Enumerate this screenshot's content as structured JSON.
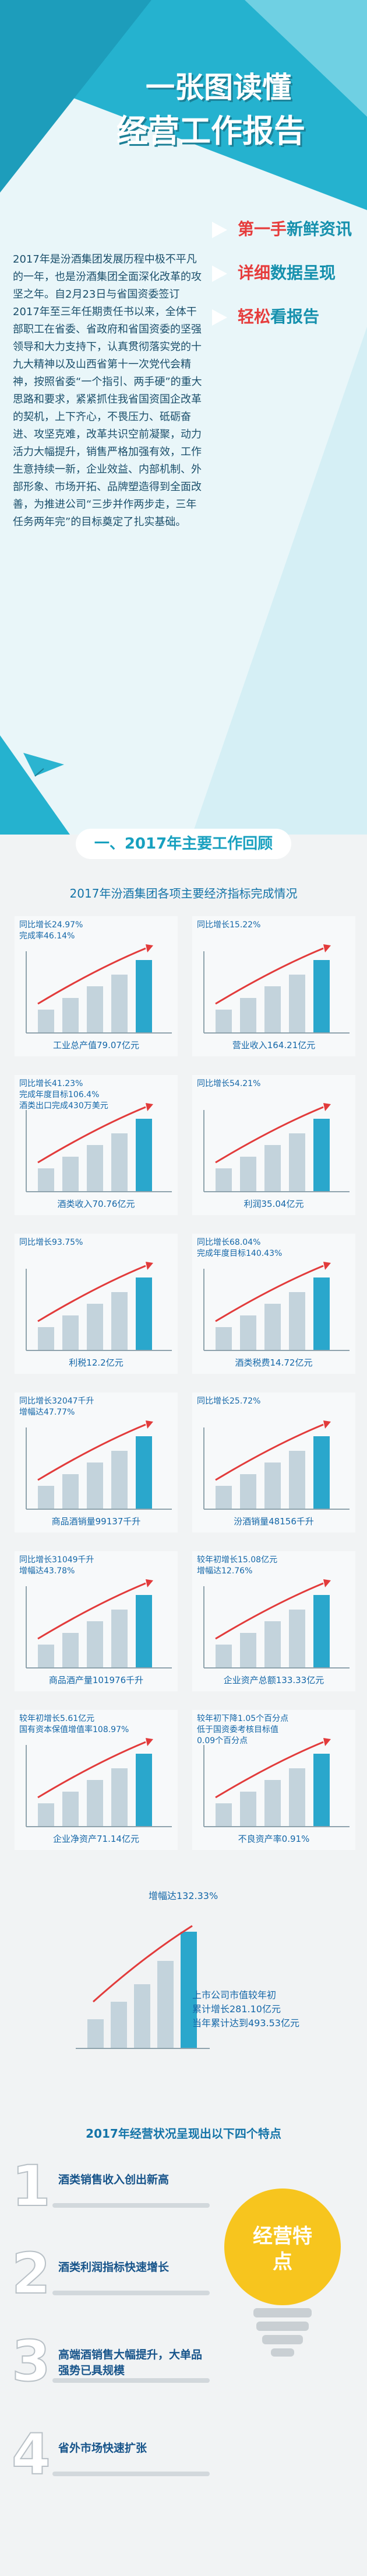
{
  "header": {
    "title_line1": "一张图读懂",
    "title_line2": "经营工作报告",
    "tags": [
      {
        "highlight": "第一手",
        "rest": "新鲜资讯"
      },
      {
        "highlight": "详细",
        "rest": "数据呈现"
      },
      {
        "highlight": "轻松",
        "rest": "看报告"
      }
    ]
  },
  "intro": "2017年是汾酒集团发展历程中极不平凡的一年，也是汾酒集团全面深化改革的攻坚之年。自2月23日与省国资委签订2017年至三年任期责任书以来，全体干部职工在省委、省政府和省国资委的坚强领导和大力支持下，认真贯彻落实党的十九大精神以及山西省第十一次党代会精神，按照省委“一个指引、两手硬”的重大思路和要求，紧紧抓住我省国资国企改革的契机，上下齐心，不畏压力、砥砺奋进、攻坚克难，改革共识空前凝聚，动力活力大幅提升，销售严格加强有效，工作生意持续一新，企业效益、内部机制、外部形象、市场开拓、品牌塑造得到全面改善，为推进公司“三步并作两步走，三年任务两年完”的目标奠定了扎实基础。",
  "section1": {
    "heading": "一、2017年主要工作回顾",
    "subtitle": "2017年汾酒集团各项主要经济指标完成情况",
    "indicators": [
      {
        "notes": [
          "同比增长24.97%",
          "完成率46.14%"
        ],
        "label": "工业总产值79.07亿元"
      },
      {
        "notes": [
          "同比增长15.22%"
        ],
        "label": "营业收入164.21亿元"
      },
      {
        "notes": [
          "同比增长41.23%",
          "完成年度目标106.4%",
          "酒类出口完成430万美元"
        ],
        "label": "酒类收入70.76亿元"
      },
      {
        "notes": [
          "同比增长54.21%"
        ],
        "label": "利润35.04亿元"
      },
      {
        "notes": [
          "同比增长93.75%"
        ],
        "label": "利税12.2亿元"
      },
      {
        "notes": [
          "同比增长68.04%",
          "完成年度目标140.43%"
        ],
        "label": "酒类税费14.72亿元"
      },
      {
        "notes": [
          "同比增长32047千升",
          "增幅达47.77%"
        ],
        "label": "商品酒销量99137千升"
      },
      {
        "notes": [
          "同比增长25.72%"
        ],
        "label": "汾酒销量48156千升"
      },
      {
        "notes": [
          "同比增长31049千升",
          "增幅达43.78%"
        ],
        "label": "商品酒产量101976千升"
      },
      {
        "notes": [
          "较年初增长15.08亿元",
          "增幅达12.76%"
        ],
        "label": "企业资产总额133.33亿元"
      },
      {
        "notes": [
          "较年初增长5.61亿元",
          "国有资本保值增值率108.97%"
        ],
        "label": "企业净资产71.14亿元"
      },
      {
        "notes": [
          "较年初下降1.05个百分点",
          "低于国资委考核目标值",
          "0.09个百分点"
        ],
        "label": "不良资产率0.91%"
      }
    ],
    "market_value": {
      "note": "增幅达132.33%",
      "lines": [
        "上市公司市值较年初",
        "累计增长281.10亿元",
        "当年累计达到493.53亿元"
      ]
    }
  },
  "section2": {
    "heading": "2017年经营状况呈现出以下四个特点",
    "bulb": "经营特点",
    "items": [
      {
        "number": "1",
        "text": "酒类销售收入创出新高"
      },
      {
        "number": "2",
        "text": "酒类利润指标快速增长"
      },
      {
        "number": "3",
        "text": "高端酒销售大幅提升，大单品强势已具规模"
      },
      {
        "number": "4",
        "text": "省外市场快速扩张"
      }
    ]
  }
}
